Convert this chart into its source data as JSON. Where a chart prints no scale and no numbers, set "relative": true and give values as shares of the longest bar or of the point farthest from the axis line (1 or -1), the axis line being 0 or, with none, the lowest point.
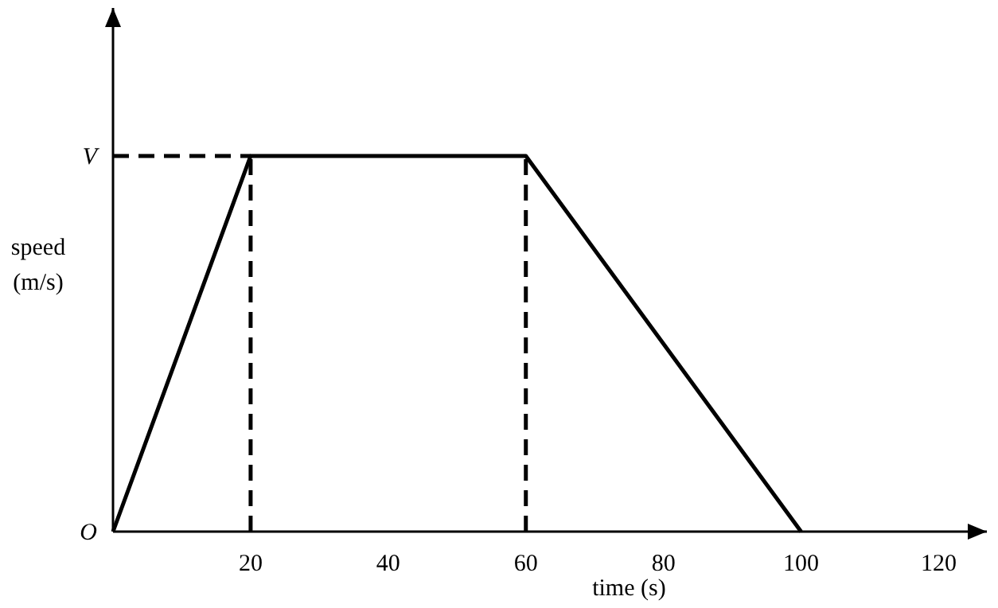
{
  "chart_data": {
    "type": "line",
    "xlabel": "time (s)",
    "ylabel": "speed\n(m/s)",
    "xlim": [
      0,
      127
    ],
    "xticks": [
      20,
      40,
      60,
      80,
      100,
      120
    ],
    "relative": true,
    "annotations": [
      {
        "text": "O",
        "x": 0,
        "y": 0
      },
      {
        "text": "V",
        "x": 0,
        "y": 1
      }
    ],
    "marker": "none",
    "series": [
      {
        "color": "#000000",
        "x": [
          0,
          20,
          60,
          100
        ],
        "values": [
          0,
          1,
          1,
          0
        ],
        "line_style": "solid"
      },
      {
        "color": "#000000",
        "x": [
          0,
          20
        ],
        "values": [
          1,
          1
        ],
        "line_style": "dashed"
      },
      {
        "color": "#000000",
        "x": [
          20,
          20
        ],
        "values": [
          0,
          1
        ],
        "line_style": "dashed"
      },
      {
        "color": "#000000",
        "x": [
          60,
          60
        ],
        "values": [
          0,
          1
        ],
        "line_style": "dashed"
      }
    ]
  }
}
